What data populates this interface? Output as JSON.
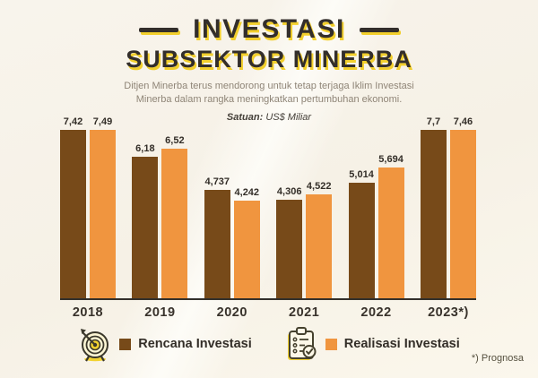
{
  "header": {
    "title_line1": "INVESTASI",
    "title_line2": "SUBSEKTOR MINERBA",
    "subtitle_line1": "Ditjen Minerba terus mendorong untuk tetap terjaga Iklim Investasi",
    "subtitle_line2": "Minerba dalam rangka meningkatkan pertumbuhan ekonomi.",
    "unit_label": "Satuan:",
    "unit_value": "US$ Miliar"
  },
  "chart_data": {
    "type": "bar",
    "categories": [
      "2018",
      "2019",
      "2020",
      "2021",
      "2022",
      "2023*)"
    ],
    "series": [
      {
        "name": "Rencana Investasi",
        "color": "#774a19",
        "values": [
          7.42,
          6.18,
          4.737,
          4.306,
          5.014,
          7.7
        ],
        "labels": [
          "7,42",
          "6,18",
          "4,737",
          "4,306",
          "5,014",
          "7,7"
        ]
      },
      {
        "name": "Realisasi Investasi",
        "color": "#f0953f",
        "values": [
          7.49,
          6.52,
          4.242,
          4.522,
          5.694,
          7.46
        ],
        "labels": [
          "7,49",
          "6,52",
          "4,242",
          "4,522",
          "5,694",
          "7,46"
        ]
      }
    ],
    "title": "INVESTASI SUBSEKTOR MINERBA",
    "xlabel": "",
    "ylabel": "US$ Miliar",
    "ylim": [
      0,
      7.8
    ],
    "grid": false,
    "legend_position": "bottom"
  },
  "legend": {
    "items": [
      {
        "icon": "target-icon",
        "swatch_color": "#774a19",
        "label": "Rencana Investasi"
      },
      {
        "icon": "clipboard-check-icon",
        "swatch_color": "#f0953f",
        "label": "Realisasi Investasi"
      }
    ]
  },
  "footnote": "*) Prognosa",
  "colors": {
    "background": "#f6f1e6",
    "title_text": "#332e2b",
    "title_highlight": "#f2cf2c",
    "subtitle_text": "#8f8577",
    "bar_rencana": "#774a19",
    "bar_realisasi": "#f0953f",
    "axis_line": "#33302b"
  }
}
